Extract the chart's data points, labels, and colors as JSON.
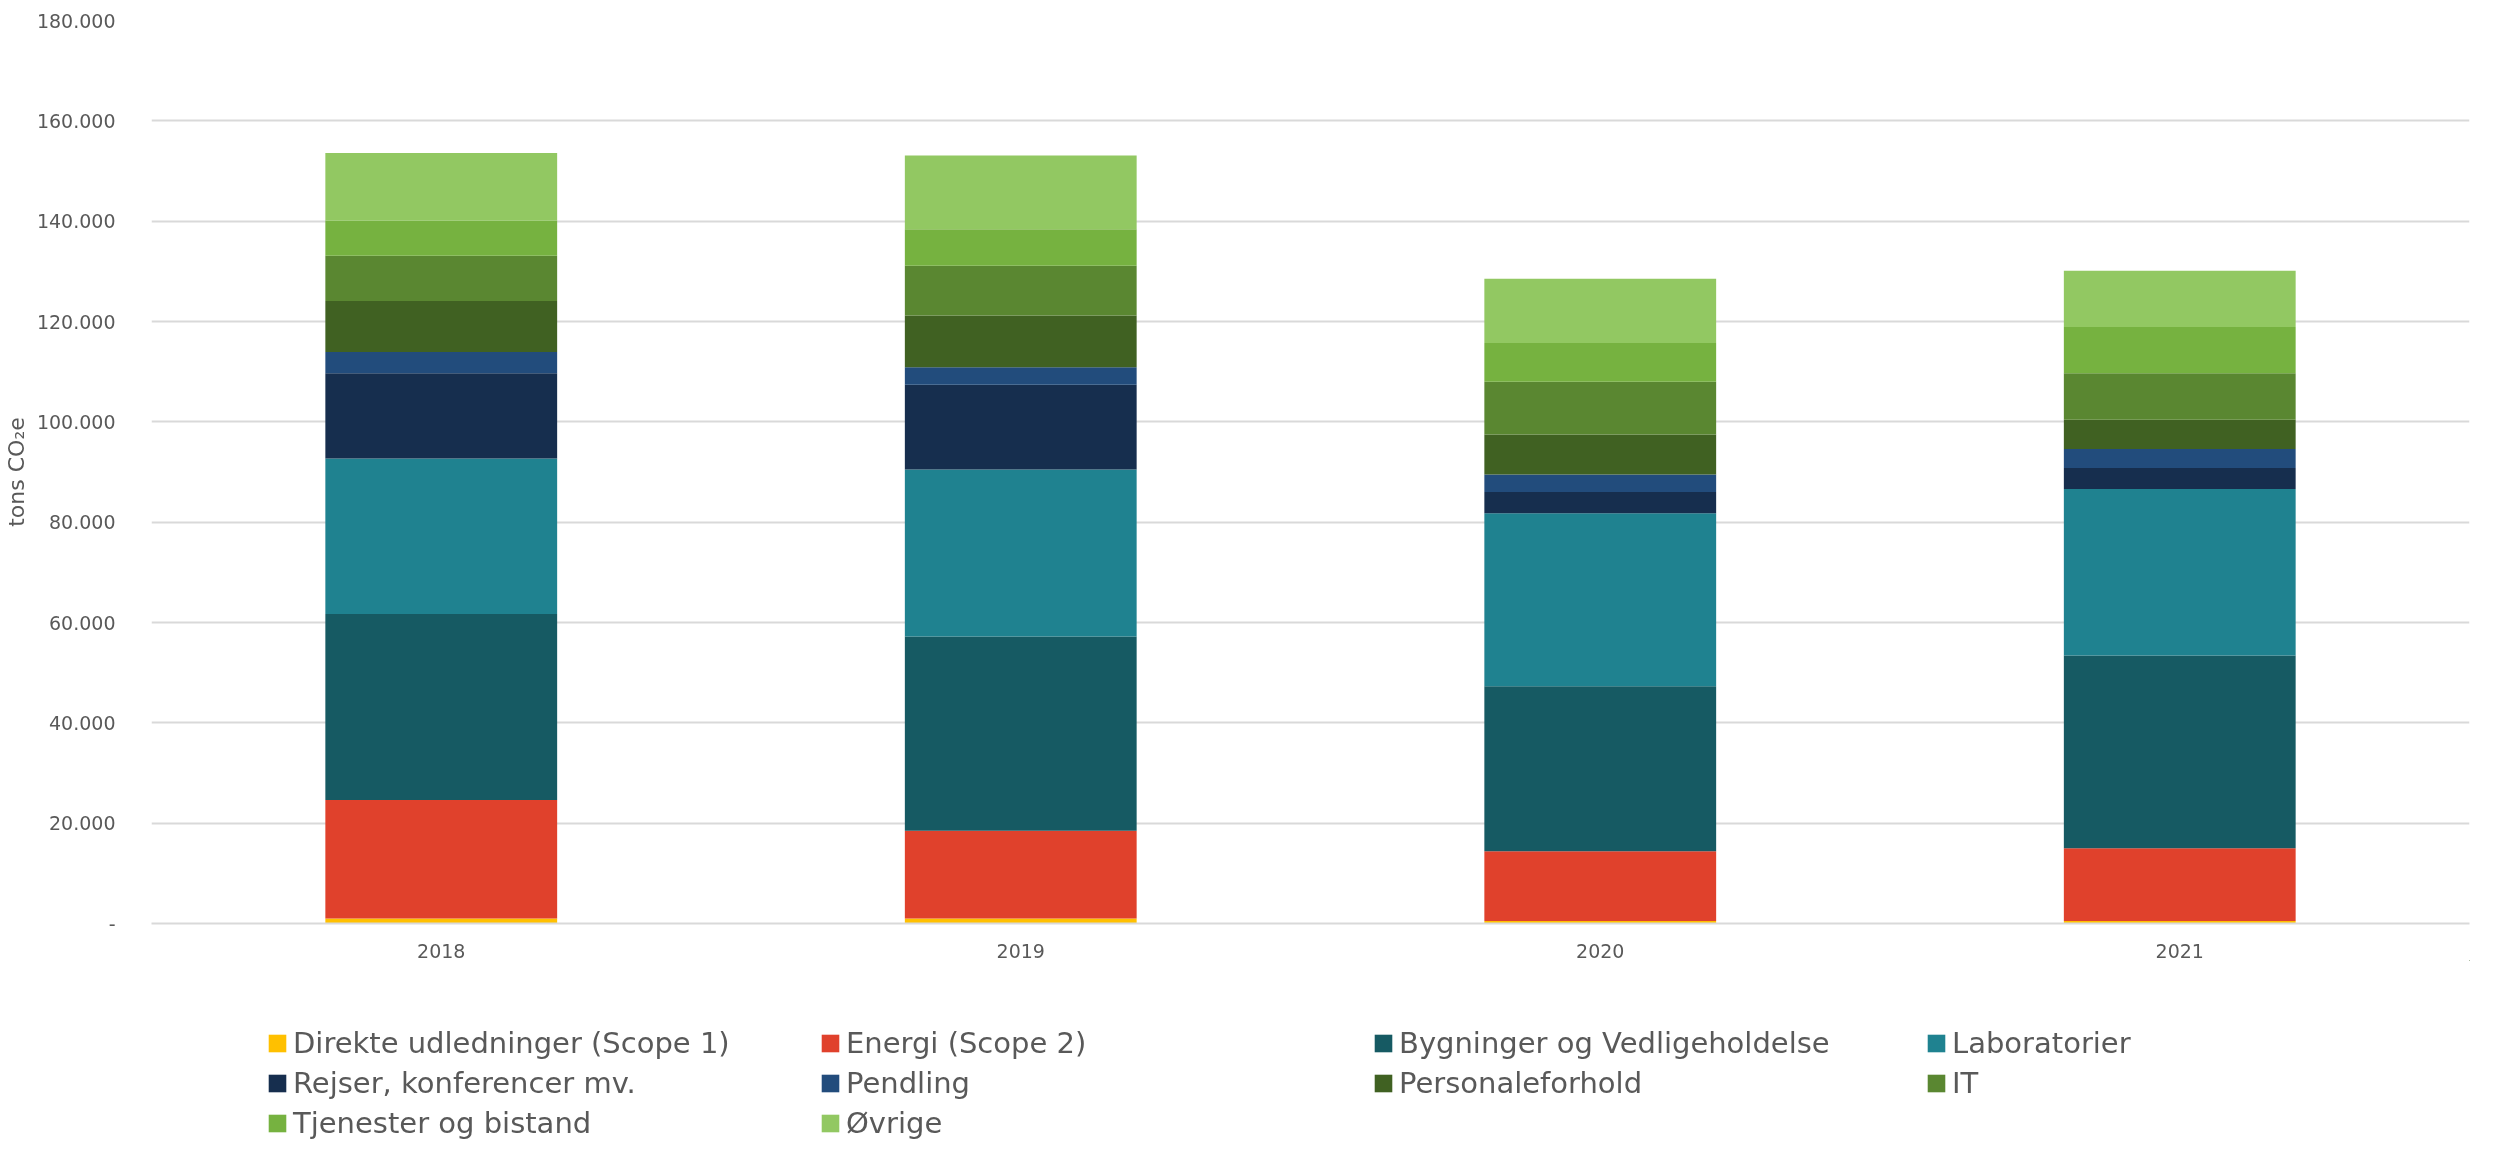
{
  "chart_data": {
    "type": "bar",
    "stacked": true,
    "ylabel": "tons CO₂e",
    "categories": [
      "2018",
      "2019",
      "2020",
      "2021"
    ],
    "ylim": [
      0,
      180000
    ],
    "yticks": [
      {
        "value": 0,
        "label": "-"
      },
      {
        "value": 20000,
        "label": "20.000"
      },
      {
        "value": 40000,
        "label": "40.000"
      },
      {
        "value": 60000,
        "label": "60.000"
      },
      {
        "value": 80000,
        "label": "80.000"
      },
      {
        "value": 100000,
        "label": "100.000"
      },
      {
        "value": 120000,
        "label": "120.000"
      },
      {
        "value": 140000,
        "label": "140.000"
      },
      {
        "value": 160000,
        "label": "160.000"
      },
      {
        "value": 180000,
        "label": "180.000"
      }
    ],
    "grid": "y",
    "legend": "bottom",
    "series": [
      {
        "name": "Direkte udledninger (Scope 1)",
        "color": "#ffc000",
        "values": [
          1000,
          1000,
          500,
          500
        ]
      },
      {
        "name": "Energi (Scope 2)",
        "color": "#e0412c",
        "values": [
          23600,
          17500,
          13900,
          14500
        ]
      },
      {
        "name": "Bygninger og Vedligeholdelse",
        "color": "#165a63",
        "values": [
          37100,
          38700,
          32900,
          38400
        ]
      },
      {
        "name": "Laboratorier",
        "color": "#1f8290",
        "values": [
          31000,
          33300,
          34500,
          33200
        ]
      },
      {
        "name": "Rejser, konferencer mv.",
        "color": "#162e4e",
        "values": [
          17000,
          16900,
          4200,
          4200
        ]
      },
      {
        "name": "Pendling",
        "color": "#224c7c",
        "values": [
          4200,
          3500,
          3500,
          3800
        ]
      },
      {
        "name": "Personaleforhold",
        "color": "#406122",
        "values": [
          10200,
          10300,
          8000,
          5800
        ]
      },
      {
        "name": "IT",
        "color": "#5a8731",
        "values": [
          9000,
          9900,
          10500,
          9300
        ]
      },
      {
        "name": "Tjenester og bistand",
        "color": "#76b240",
        "values": [
          7000,
          7300,
          7700,
          9200
        ]
      },
      {
        "name": "Øvrige",
        "color": "#92c862",
        "values": [
          13500,
          14700,
          12800,
          11200
        ]
      }
    ]
  }
}
